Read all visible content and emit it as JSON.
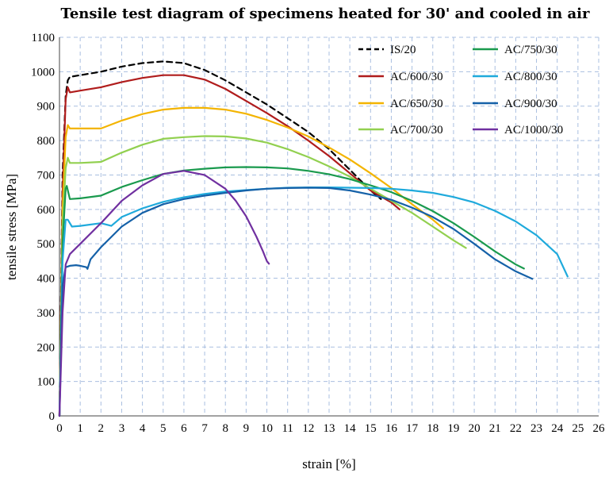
{
  "chart_data": {
    "type": "line",
    "title": "Tensile test diagram of specimens heated for 30' and cooled in air",
    "xlabel": "strain [%]",
    "ylabel": "tensile stress [MPa]",
    "xlim": [
      0,
      26
    ],
    "ylim": [
      0,
      1100
    ],
    "xticks": [
      0,
      1,
      2,
      3,
      4,
      5,
      6,
      7,
      8,
      9,
      10,
      11,
      12,
      13,
      14,
      15,
      16,
      17,
      18,
      19,
      20,
      21,
      22,
      23,
      24,
      25,
      26
    ],
    "yticks": [
      0,
      100,
      200,
      300,
      400,
      500,
      600,
      700,
      800,
      900,
      1000,
      1100
    ],
    "grid": true,
    "legend_position": "top-right",
    "series": [
      {
        "name": "IS/20",
        "color": "#000000",
        "dash": true,
        "x": [
          0,
          0.15,
          0.3,
          0.4,
          0.5,
          1,
          2,
          3,
          4,
          5,
          6,
          7,
          8,
          9,
          10,
          11,
          12,
          13,
          14,
          15,
          15.5
        ],
        "y": [
          0,
          700,
          930,
          975,
          985,
          990,
          1000,
          1015,
          1025,
          1030,
          1025,
          1005,
          975,
          940,
          905,
          865,
          825,
          775,
          715,
          655,
          630
        ]
      },
      {
        "name": "AC/600/30",
        "color": "#b01c1c",
        "dash": false,
        "x": [
          0,
          0.15,
          0.3,
          0.4,
          0.5,
          1,
          2,
          3,
          4,
          5,
          6,
          7,
          8,
          9,
          10,
          11,
          12,
          13,
          14,
          15,
          16,
          16.4
        ],
        "y": [
          0,
          650,
          920,
          955,
          940,
          945,
          955,
          970,
          982,
          990,
          990,
          977,
          950,
          915,
          880,
          842,
          800,
          755,
          705,
          655,
          620,
          600
        ]
      },
      {
        "name": "AC/650/30",
        "color": "#f3b400",
        "dash": false,
        "x": [
          0,
          0.15,
          0.3,
          0.4,
          0.5,
          1,
          2,
          3,
          4,
          5,
          6,
          7,
          8,
          9,
          10,
          11,
          12,
          13,
          14,
          15,
          16,
          17,
          18,
          18.5
        ],
        "y": [
          0,
          600,
          810,
          845,
          835,
          835,
          835,
          858,
          877,
          890,
          895,
          895,
          890,
          878,
          860,
          838,
          812,
          780,
          745,
          705,
          662,
          615,
          570,
          545
        ]
      },
      {
        "name": "AC/700/30",
        "color": "#92d050",
        "dash": false,
        "x": [
          0,
          0.15,
          0.3,
          0.4,
          0.5,
          1,
          2,
          3,
          4,
          5,
          6,
          7,
          8,
          9,
          10,
          11,
          12,
          13,
          14,
          15,
          16,
          17,
          18,
          19,
          19.6
        ],
        "y": [
          0,
          550,
          720,
          750,
          735,
          735,
          738,
          765,
          788,
          805,
          810,
          813,
          812,
          806,
          794,
          775,
          752,
          725,
          695,
          660,
          625,
          590,
          550,
          510,
          488
        ]
      },
      {
        "name": "AC/750/30",
        "color": "#1a9a4e",
        "dash": false,
        "x": [
          0,
          0.15,
          0.3,
          0.35,
          0.5,
          1,
          2,
          3,
          4,
          5,
          6,
          7,
          8,
          9,
          10,
          11,
          12,
          13,
          14,
          15,
          16,
          17,
          18,
          19,
          20,
          21,
          22,
          22.4
        ],
        "y": [
          0,
          500,
          660,
          668,
          630,
          632,
          640,
          665,
          685,
          703,
          713,
          718,
          722,
          723,
          722,
          719,
          712,
          702,
          688,
          670,
          650,
          625,
          595,
          560,
          520,
          478,
          440,
          428
        ]
      },
      {
        "name": "AC/800/30",
        "color": "#1faadc",
        "dash": false,
        "x": [
          0,
          0.15,
          0.3,
          0.4,
          0.6,
          1,
          2,
          2.5,
          3,
          4,
          5,
          6,
          7,
          8,
          9,
          10,
          11,
          12,
          13,
          14,
          15,
          16,
          17,
          18,
          19,
          20,
          21,
          22,
          23,
          24,
          24.5
        ],
        "y": [
          0,
          450,
          570,
          570,
          550,
          552,
          560,
          552,
          578,
          603,
          622,
          635,
          645,
          652,
          656,
          660,
          663,
          664,
          664,
          663,
          662,
          660,
          655,
          648,
          636,
          620,
          596,
          565,
          525,
          470,
          405
        ]
      },
      {
        "name": "AC/900/30",
        "color": "#1561a8",
        "dash": false,
        "x": [
          0,
          0.15,
          0.3,
          0.5,
          0.8,
          1,
          1.3,
          1.35,
          1.5,
          2,
          3,
          4,
          5,
          6,
          7,
          8,
          9,
          10,
          11,
          12,
          13,
          14,
          15,
          16,
          17,
          18,
          19,
          20,
          21,
          22,
          22.8
        ],
        "y": [
          0,
          380,
          432,
          436,
          438,
          436,
          432,
          427,
          455,
          490,
          550,
          590,
          615,
          630,
          640,
          648,
          655,
          660,
          662,
          663,
          662,
          655,
          643,
          628,
          605,
          578,
          543,
          500,
          455,
          420,
          398
        ]
      },
      {
        "name": "AC/1000/30",
        "color": "#7030a0",
        "dash": false,
        "x": [
          0,
          0.15,
          0.3,
          0.5,
          1,
          2,
          3,
          4,
          5,
          6,
          7,
          8,
          8.5,
          9,
          9.5,
          9.8,
          10,
          10.1
        ],
        "y": [
          0,
          300,
          440,
          470,
          500,
          560,
          625,
          670,
          703,
          712,
          700,
          660,
          625,
          580,
          520,
          480,
          450,
          442
        ]
      }
    ]
  }
}
